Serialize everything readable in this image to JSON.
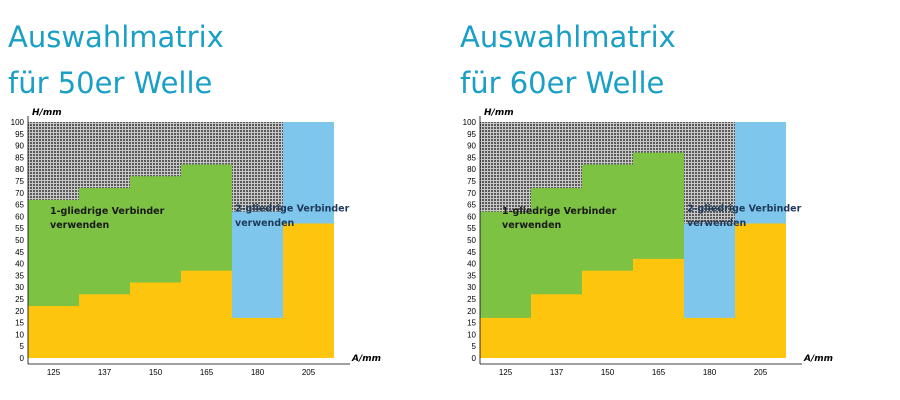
{
  "colors": {
    "title": "#1a9fc6",
    "grey_zone": "#6e6e6e",
    "one_link_zone": "#7dc242",
    "two_link_zone": "#7fc6ec",
    "yellow_zone": "#fec50f"
  },
  "chart_data": [
    {
      "type": "area",
      "title": [
        "Auswahlmatrix",
        "für 50er Welle"
      ],
      "xlabel": "A/mm",
      "ylabel": "H/mm",
      "categories": [
        "125",
        "137",
        "150",
        "165",
        "180",
        "205"
      ],
      "yticks": [
        0,
        5,
        10,
        15,
        20,
        25,
        30,
        35,
        40,
        45,
        50,
        55,
        60,
        65,
        70,
        75,
        80,
        85,
        90,
        95,
        100
      ],
      "ylim": [
        0,
        100
      ],
      "regions": [
        {
          "name": "1-gliedrige Verbinder verwenden",
          "color": "#7dc242",
          "lower": [
            22,
            27,
            32,
            37
          ],
          "upper": [
            67,
            72,
            77,
            82
          ]
        },
        {
          "name": "2-gliedrige Verbinder verwenden",
          "color": "#7fc6ec",
          "lower": [
            17,
            57
          ],
          "upper": [
            62,
            100
          ]
        }
      ],
      "region_labels": {
        "one": [
          "1-gliedrige Verbinder",
          "verwenden"
        ],
        "two": [
          "2-gliedrige Verbinder",
          "verwenden"
        ]
      }
    },
    {
      "type": "area",
      "title": [
        "Auswahlmatrix",
        "für 60er Welle"
      ],
      "xlabel": "A/mm",
      "ylabel": "H/mm",
      "categories": [
        "125",
        "137",
        "150",
        "165",
        "180",
        "205"
      ],
      "yticks": [
        0,
        5,
        10,
        15,
        20,
        25,
        30,
        35,
        40,
        45,
        50,
        55,
        60,
        65,
        70,
        75,
        80,
        85,
        90,
        95,
        100
      ],
      "ylim": [
        0,
        100
      ],
      "regions": [
        {
          "name": "1-gliedrige Verbinder verwenden",
          "color": "#7dc242",
          "lower": [
            17,
            27,
            37,
            42
          ],
          "upper": [
            62,
            72,
            82,
            87
          ]
        },
        {
          "name": "2-gliedrige Verbinder verwenden",
          "color": "#7fc6ec",
          "lower": [
            17,
            57
          ],
          "upper": [
            57,
            100
          ]
        }
      ],
      "region_labels": {
        "one": [
          "1-gliedrige Verbinder",
          "verwenden"
        ],
        "two": [
          "2-gliedrige Verbinder",
          "verwenden"
        ]
      }
    }
  ]
}
